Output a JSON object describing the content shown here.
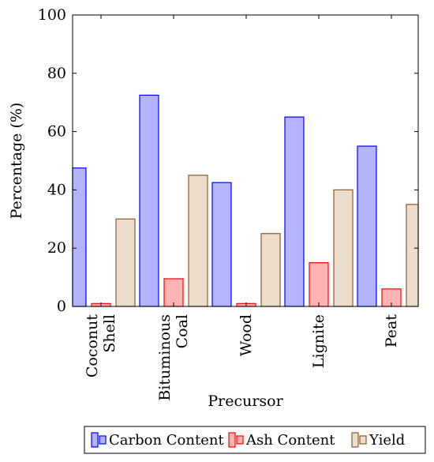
{
  "chart_data": {
    "type": "bar",
    "xlabel": "Precursor",
    "ylabel": "Percentage (%)",
    "ylim": [
      0,
      100
    ],
    "yticks": [
      0,
      20,
      40,
      60,
      80,
      100
    ],
    "grid": false,
    "legend_position": "bottom",
    "categories": [
      [
        "Coconut",
        "Shell"
      ],
      [
        "Bituminous",
        "Coal"
      ],
      [
        "Wood"
      ],
      [
        "Lignite"
      ],
      [
        "Peat"
      ]
    ],
    "series": [
      {
        "name": "Carbon Content",
        "values": [
          47.5,
          72.5,
          42.5,
          65,
          55
        ],
        "fill": "#b3b3ff",
        "stroke": "#0000ff"
      },
      {
        "name": "Ash Content",
        "values": [
          1,
          9.5,
          1,
          15,
          6
        ],
        "fill": "#ffb3b3",
        "stroke": "#ff0000"
      },
      {
        "name": "Yield",
        "values": [
          30,
          45,
          25,
          40,
          35
        ],
        "fill": "#ecdcca",
        "stroke": "#8b5a2b"
      }
    ]
  }
}
